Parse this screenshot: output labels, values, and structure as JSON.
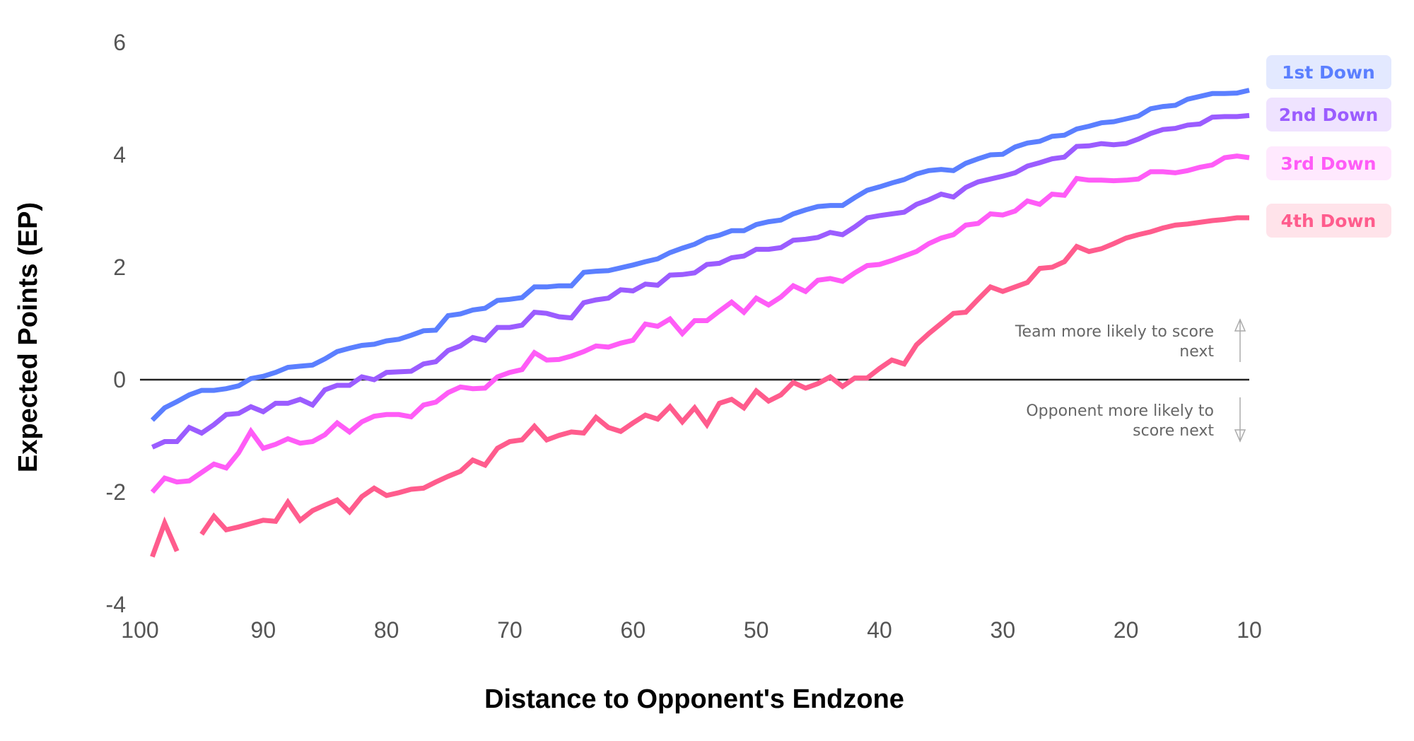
{
  "chart_data": {
    "type": "line",
    "title": "",
    "xlabel": "Distance to Opponent's Endzone",
    "ylabel": "Expected Points (EP)",
    "xlim": [
      100,
      10
    ],
    "ylim": [
      -4,
      6
    ],
    "x_reversed": true,
    "xticks": [
      100,
      90,
      80,
      70,
      60,
      50,
      40,
      30,
      20,
      10
    ],
    "yticks": [
      6,
      4,
      2,
      0,
      -2,
      -4
    ],
    "grid": false,
    "reference_line_y": 0,
    "legend_placement": "right",
    "x": [
      99,
      98,
      97,
      96,
      95,
      94,
      93,
      92,
      91,
      90,
      89,
      88,
      87,
      86,
      85,
      84,
      83,
      82,
      81,
      80,
      79,
      78,
      77,
      76,
      75,
      74,
      73,
      72,
      71,
      70,
      69,
      68,
      67,
      66,
      65,
      64,
      63,
      62,
      61,
      60,
      59,
      58,
      57,
      56,
      55,
      54,
      53,
      52,
      51,
      50,
      49,
      48,
      47,
      46,
      45,
      44,
      43,
      42,
      41,
      40,
      39,
      38,
      37,
      36,
      35,
      34,
      33,
      32,
      31,
      30,
      29,
      28,
      27,
      26,
      25,
      24,
      23,
      22,
      21,
      20,
      19,
      18,
      17,
      16,
      15,
      14,
      13,
      12,
      11,
      10
    ],
    "series": [
      {
        "name": "1st Down",
        "color": "#5b7fff",
        "legend_bg": "#e3e9ff",
        "values": [
          -0.72,
          -0.5,
          -0.39,
          -0.27,
          -0.19,
          -0.19,
          -0.16,
          -0.11,
          0.02,
          0.06,
          0.13,
          0.22,
          0.24,
          0.26,
          0.37,
          0.5,
          0.56,
          0.61,
          0.63,
          0.69,
          0.72,
          0.79,
          0.87,
          0.88,
          1.14,
          1.17,
          1.24,
          1.27,
          1.41,
          1.43,
          1.46,
          1.65,
          1.65,
          1.67,
          1.67,
          1.91,
          1.93,
          1.94,
          1.99,
          2.04,
          2.1,
          2.15,
          2.26,
          2.34,
          2.41,
          2.52,
          2.57,
          2.65,
          2.65,
          2.76,
          2.81,
          2.84,
          2.95,
          3.02,
          3.08,
          3.1,
          3.1,
          3.24,
          3.37,
          3.43,
          3.5,
          3.56,
          3.66,
          3.72,
          3.74,
          3.72,
          3.85,
          3.93,
          4.0,
          4.01,
          4.14,
          4.21,
          4.24,
          4.33,
          4.35,
          4.46,
          4.51,
          4.57,
          4.59,
          4.64,
          4.69,
          4.82,
          4.86,
          4.88,
          4.99,
          5.04,
          5.09,
          5.09,
          5.1,
          5.15
        ]
      },
      {
        "name": "2nd Down",
        "color": "#9b5cff",
        "legend_bg": "#efe3ff",
        "values": [
          -1.2,
          -1.1,
          -1.1,
          -0.85,
          -0.95,
          -0.8,
          -0.62,
          -0.6,
          -0.48,
          -0.57,
          -0.42,
          -0.42,
          -0.35,
          -0.45,
          -0.18,
          -0.1,
          -0.1,
          0.05,
          0.0,
          0.13,
          0.14,
          0.15,
          0.28,
          0.32,
          0.52,
          0.6,
          0.75,
          0.7,
          0.93,
          0.93,
          0.97,
          1.2,
          1.18,
          1.12,
          1.1,
          1.37,
          1.42,
          1.45,
          1.6,
          1.58,
          1.7,
          1.68,
          1.86,
          1.87,
          1.9,
          2.05,
          2.07,
          2.17,
          2.2,
          2.32,
          2.32,
          2.35,
          2.48,
          2.5,
          2.53,
          2.62,
          2.58,
          2.72,
          2.88,
          2.92,
          2.95,
          2.98,
          3.12,
          3.2,
          3.3,
          3.25,
          3.42,
          3.52,
          3.57,
          3.62,
          3.68,
          3.8,
          3.86,
          3.93,
          3.96,
          4.15,
          4.16,
          4.2,
          4.18,
          4.2,
          4.28,
          4.38,
          4.45,
          4.47,
          4.53,
          4.55,
          4.67,
          4.68,
          4.68,
          4.7
        ]
      },
      {
        "name": "3rd Down",
        "color": "#ff5cf7",
        "legend_bg": "#ffe9fe",
        "values": [
          -2.0,
          -1.75,
          -1.82,
          -1.8,
          -1.65,
          -1.5,
          -1.57,
          -1.3,
          -0.92,
          -1.22,
          -1.15,
          -1.05,
          -1.13,
          -1.1,
          -0.98,
          -0.77,
          -0.93,
          -0.75,
          -0.65,
          -0.62,
          -0.62,
          -0.66,
          -0.45,
          -0.4,
          -0.23,
          -0.13,
          -0.16,
          -0.15,
          0.05,
          0.13,
          0.18,
          0.48,
          0.35,
          0.36,
          0.42,
          0.5,
          0.6,
          0.58,
          0.65,
          0.7,
          0.99,
          0.95,
          1.08,
          0.82,
          1.05,
          1.05,
          1.22,
          1.38,
          1.2,
          1.45,
          1.33,
          1.47,
          1.67,
          1.57,
          1.77,
          1.8,
          1.75,
          1.9,
          2.03,
          2.05,
          2.12,
          2.2,
          2.28,
          2.42,
          2.52,
          2.58,
          2.75,
          2.78,
          2.95,
          2.93,
          3.0,
          3.18,
          3.12,
          3.3,
          3.28,
          3.58,
          3.55,
          3.55,
          3.54,
          3.55,
          3.57,
          3.7,
          3.7,
          3.68,
          3.72,
          3.78,
          3.82,
          3.95,
          3.98,
          3.95
        ]
      },
      {
        "name": "4th Down",
        "color": "#ff5c8d",
        "legend_bg": "#ffe3ea",
        "values": [
          -3.15,
          -2.55,
          -3.05,
          null,
          -2.75,
          -2.43,
          -2.67,
          -2.62,
          -2.56,
          -2.5,
          -2.52,
          -2.18,
          -2.5,
          -2.33,
          -2.23,
          -2.14,
          -2.35,
          -2.08,
          -1.93,
          -2.06,
          -2.01,
          -1.95,
          -1.93,
          -1.82,
          -1.72,
          -1.63,
          -1.43,
          -1.52,
          -1.22,
          -1.1,
          -1.07,
          -0.83,
          -1.07,
          -0.99,
          -0.93,
          -0.95,
          -0.67,
          -0.85,
          -0.92,
          -0.77,
          -0.63,
          -0.7,
          -0.48,
          -0.75,
          -0.5,
          -0.8,
          -0.42,
          -0.35,
          -0.5,
          -0.2,
          -0.38,
          -0.27,
          -0.05,
          -0.15,
          -0.07,
          0.05,
          -0.12,
          0.03,
          0.03,
          0.2,
          0.35,
          0.28,
          0.62,
          0.82,
          1.0,
          1.18,
          1.2,
          1.43,
          1.65,
          1.57,
          1.65,
          1.73,
          1.98,
          2.0,
          2.1,
          2.37,
          2.28,
          2.33,
          2.42,
          2.52,
          2.58,
          2.63,
          2.7,
          2.75,
          2.77,
          2.8,
          2.83,
          2.85,
          2.88,
          2.88
        ]
      }
    ],
    "annotations": {
      "up": {
        "line1": "Team more likely to score",
        "line2": "next",
        "icon": "arrow-up-icon"
      },
      "down": {
        "line1": "Opponent more likely to",
        "line2": "score next",
        "icon": "arrow-down-icon"
      }
    }
  }
}
